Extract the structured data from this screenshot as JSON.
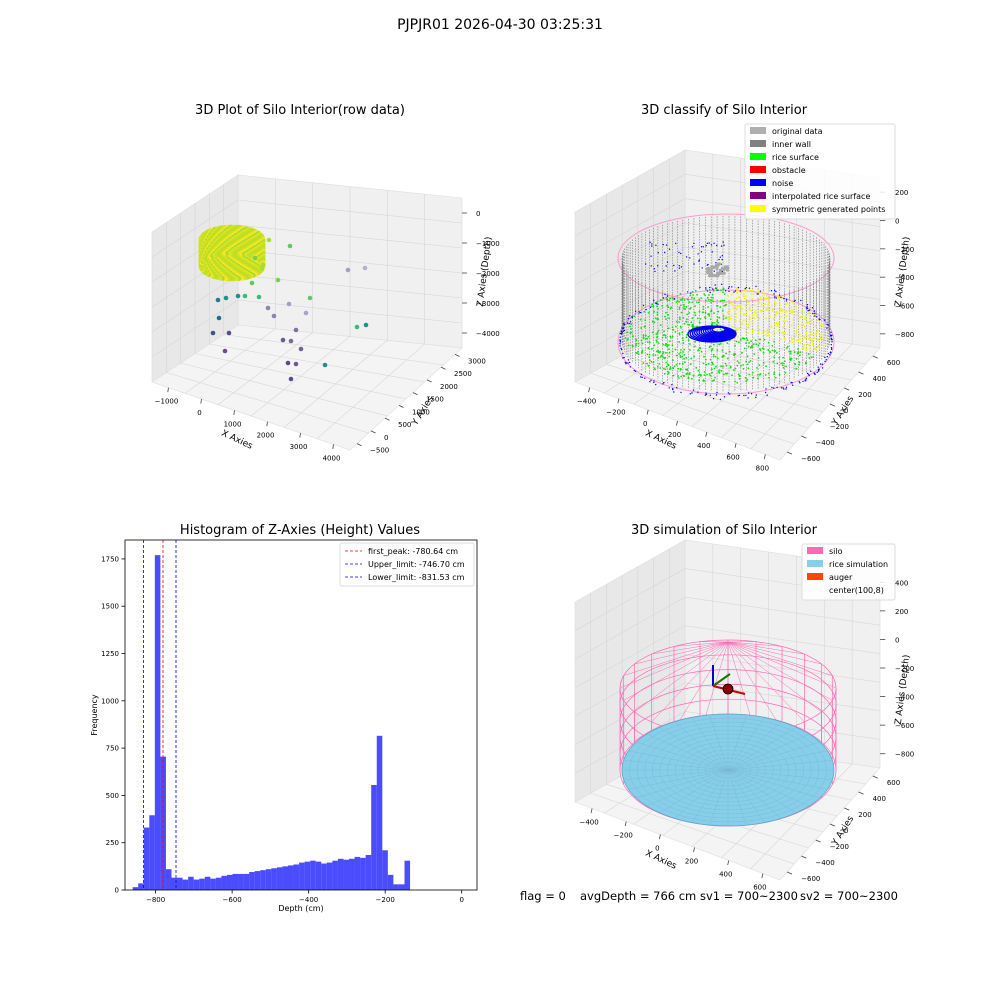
{
  "suptitle": "PJPJR01 2026-04-30 03:25:31",
  "panel1": {
    "title": "3D Plot of Silo Interior(row data)",
    "xlabel": "X Axies",
    "ylabel": "Y Axies",
    "zlabel": "Z Axies (Depth)",
    "xticks": [
      "−1000",
      "0",
      "1000",
      "2000",
      "3000",
      "4000"
    ],
    "yticks": [
      "−500",
      "0",
      "500",
      "1000",
      "1500",
      "2000",
      "2500",
      "3000"
    ],
    "zticks": [
      "0",
      "−1000",
      "−2000",
      "−3000",
      "−4000"
    ]
  },
  "panel2": {
    "title": "3D classify of Silo Interior",
    "xlabel": "X Axies",
    "ylabel": "Y Axies",
    "zlabel": "Z Axies (Depth)",
    "xticks": [
      "−400",
      "−200",
      "0",
      "200",
      "400",
      "600",
      "800"
    ],
    "yticks": [
      "−600",
      "−400",
      "−200",
      "0",
      "200",
      "400",
      "600"
    ],
    "zticks": [
      "200",
      "0",
      "−200",
      "−400",
      "−600",
      "−800"
    ],
    "legend": [
      {
        "label": "original data",
        "color": "#b0b0b0"
      },
      {
        "label": "inner wall",
        "color": "#808080"
      },
      {
        "label": "rice surface",
        "color": "#00ff00"
      },
      {
        "label": "obstacle",
        "color": "#ff0000"
      },
      {
        "label": "noise",
        "color": "#0000ff"
      },
      {
        "label": "interpolated rice surface",
        "color": "#800080"
      },
      {
        "label": "symmetric generated points",
        "color": "#ffff00"
      }
    ]
  },
  "panel4": {
    "title": "3D simulation of Silo Interior",
    "xlabel": "X Axies",
    "ylabel": "Y Axies",
    "zlabel": "Z Axies (Depth)",
    "xticks": [
      "−400",
      "−200",
      "0",
      "200",
      "400",
      "600"
    ],
    "yticks": [
      "−600",
      "−400",
      "−200",
      "0",
      "200",
      "400",
      "600"
    ],
    "zticks": [
      "400",
      "200",
      "0",
      "−200",
      "−400",
      "−600",
      "−800"
    ],
    "legend": [
      {
        "label": "silo",
        "color": "#ff69b4"
      },
      {
        "label": "rice simulation",
        "color": "#87ceeb"
      },
      {
        "label": "auger",
        "color": "#ff4500"
      },
      {
        "label": "center(100,8)",
        "color": ""
      }
    ]
  },
  "chart_data": {
    "type": "bar",
    "title": "Histogram of Z-Axies (Height) Values",
    "xlabel": "Depth (cm)",
    "ylabel": "Frequency",
    "bar_color": "#0000ff",
    "xlim": [
      -880,
      40
    ],
    "ylim": [
      0,
      1850
    ],
    "xticks": [
      "−800",
      "−600",
      "−400",
      "−200",
      "0"
    ],
    "yticks": [
      "0",
      "250",
      "500",
      "750",
      "1000",
      "1250",
      "1500",
      "1750"
    ],
    "bin_edges_start": -860,
    "bin_width": 14.5,
    "values": [
      15,
      35,
      330,
      395,
      1770,
      705,
      110,
      65,
      65,
      55,
      70,
      55,
      60,
      70,
      60,
      65,
      75,
      80,
      85,
      85,
      85,
      95,
      100,
      105,
      110,
      115,
      120,
      125,
      130,
      135,
      145,
      150,
      155,
      150,
      140,
      145,
      155,
      165,
      160,
      165,
      175,
      170,
      185,
      555,
      815,
      210,
      80,
      30,
      30,
      155
    ],
    "lines": [
      {
        "label": "first_peak: -780.64 cm",
        "x": -780.64,
        "color": "#ff0000"
      },
      {
        "label": "Upper_limit: -746.70 cm",
        "x": -746.7,
        "color": "#0000ff"
      },
      {
        "label": "Lower_limit: -831.53 cm",
        "x": -831.53,
        "color": "#0000ff"
      }
    ]
  },
  "footer": {
    "flag": "flag = 0",
    "avg": "avgDepth = 766 cm",
    "sv1": "sv1 = 700~2300",
    "sv2": "sv2 = 700~2300"
  }
}
